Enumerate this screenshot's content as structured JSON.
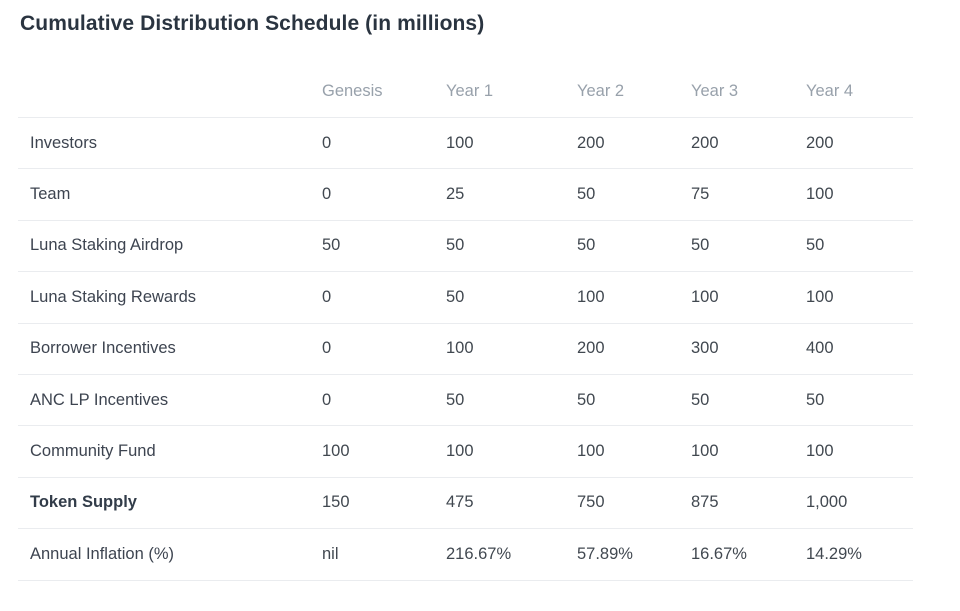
{
  "title": "Cumulative Distribution Schedule (in millions)",
  "colors": {
    "title_text": "#2a3440",
    "header_text": "#98a1ab",
    "body_text": "#414850",
    "divider": "#eaecef",
    "background": "#ffffff"
  },
  "chart_data": {
    "type": "table",
    "title": "Cumulative Distribution Schedule (in millions)",
    "columns": [
      "",
      "Genesis",
      "Year 1",
      "Year 2",
      "Year 3",
      "Year 4"
    ],
    "rows": [
      {
        "label": "Investors",
        "values": [
          "0",
          "100",
          "200",
          "200",
          "200"
        ],
        "emphasis": false
      },
      {
        "label": "Team",
        "values": [
          "0",
          "25",
          "50",
          "75",
          "100"
        ],
        "emphasis": false
      },
      {
        "label": "Luna Staking Airdrop",
        "values": [
          "50",
          "50",
          "50",
          "50",
          "50"
        ],
        "emphasis": false
      },
      {
        "label": "Luna Staking Rewards",
        "values": [
          "0",
          "50",
          "100",
          "100",
          "100"
        ],
        "emphasis": false
      },
      {
        "label": "Borrower Incentives",
        "values": [
          "0",
          "100",
          "200",
          "300",
          "400"
        ],
        "emphasis": false
      },
      {
        "label": "ANC LP Incentives",
        "values": [
          "0",
          "50",
          "50",
          "50",
          "50"
        ],
        "emphasis": false
      },
      {
        "label": "Community Fund",
        "values": [
          "100",
          "100",
          "100",
          "100",
          "100"
        ],
        "emphasis": false
      },
      {
        "label": "Token Supply",
        "values": [
          "150",
          "475",
          "750",
          "875",
          "1,000"
        ],
        "emphasis": true
      },
      {
        "label": "Annual Inflation (%)",
        "values": [
          "nil",
          "216.67%",
          "57.89%",
          "16.67%",
          "14.29%"
        ],
        "emphasis": false
      }
    ]
  }
}
